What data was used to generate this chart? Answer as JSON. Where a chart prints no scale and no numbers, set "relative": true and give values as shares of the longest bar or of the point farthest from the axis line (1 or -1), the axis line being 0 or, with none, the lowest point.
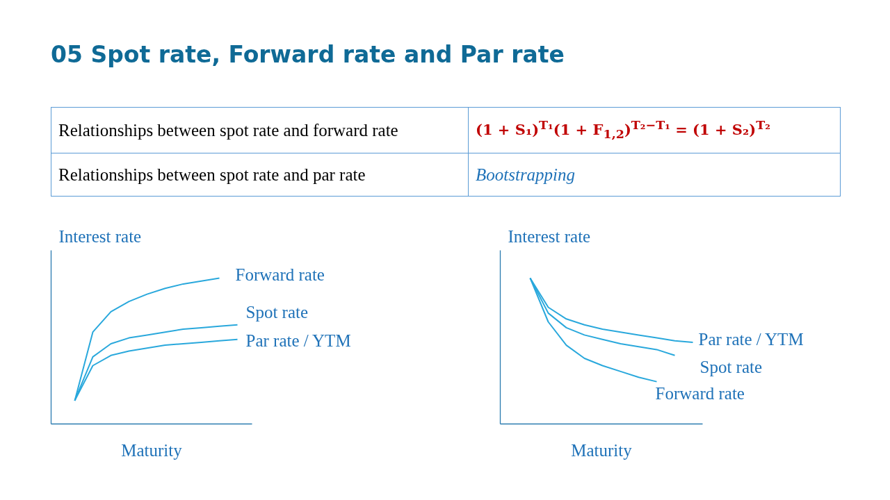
{
  "chart_data": [
    {
      "type": "line",
      "title": "05 Spot rate, Forward rate and Par rate",
      "annotations": [
        "Relationships between spot rate and forward rate",
        "(1 + S₁)$^{T₁}$(1 + F$_{1,2}$)$^{T₂−T₁}$ = (1 + S₂)$^{T₂}$",
        "Relationships between spot rate and par rate",
        "Bootstrapping"
      ],
      "xlabel": "Maturity",
      "ylabel": "Interest rate",
      "relative": true,
      "categories": [
        null,
        null,
        null,
        null,
        null,
        null,
        null,
        null,
        null,
        null
      ],
      "tick_labels": false,
      "series": [
        {
          "name": "Forward  rate",
          "color": "#29a8dc",
          "values": [
            0.16,
            0.63,
            0.77,
            0.84,
            0.89,
            0.93,
            0.96,
            0.98,
            1.0,
            null
          ]
        },
        {
          "name": "Spot rate",
          "color": "#29a8dc",
          "values": [
            0.16,
            0.46,
            0.55,
            0.59,
            0.61,
            0.63,
            0.65,
            0.66,
            0.67,
            0.68
          ]
        },
        {
          "name": "Par rate / YTM",
          "color": "#29a8dc",
          "values": [
            0.16,
            0.4,
            0.47,
            0.5,
            0.52,
            0.54,
            0.55,
            0.56,
            0.57,
            0.58
          ]
        }
      ]
    },
    {
      "type": "line",
      "xlabel": "Maturity",
      "ylabel": "Interest rate",
      "relative": true,
      "categories": [
        null,
        null,
        null,
        null,
        null,
        null,
        null,
        null,
        null,
        null
      ],
      "tick_labels": false,
      "series": [
        {
          "name": "Forward  rate",
          "color": "#29a8dc",
          "values": [
            1.0,
            0.7,
            0.54,
            0.45,
            0.4,
            0.36,
            0.32,
            0.29,
            null,
            null
          ]
        },
        {
          "name": "Spot rate",
          "color": "#29a8dc",
          "values": [
            1.0,
            0.76,
            0.66,
            0.61,
            0.58,
            0.55,
            0.53,
            0.51,
            0.47,
            null
          ]
        },
        {
          "name": "Par rate / YTM",
          "color": "#29a8dc",
          "values": [
            1.0,
            0.8,
            0.72,
            0.68,
            0.65,
            0.63,
            0.61,
            0.59,
            0.57,
            0.56
          ]
        }
      ]
    }
  ]
}
